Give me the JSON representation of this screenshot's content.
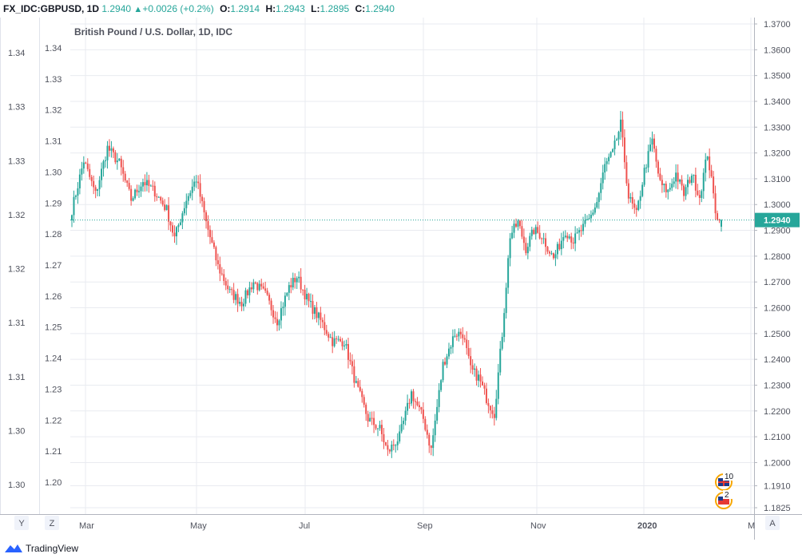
{
  "header": {
    "symbol": "FX_IDC:GBPUSD, 1D",
    "last": "1.2940",
    "change": "+0.0026 (+0.2%)",
    "open_label": "O:",
    "open": "1.2914",
    "high_label": "H:",
    "high": "1.2943",
    "low_label": "L:",
    "low": "1.2895",
    "close_label": "C:",
    "close": "1.2940"
  },
  "footer": {
    "brand": "TradingView"
  },
  "colors": {
    "up": "#26a69a",
    "down": "#ef5350",
    "grid": "#e9ebf0",
    "price_line": "#26a69a",
    "price_label_bg": "#26a69a",
    "text": "#131722",
    "axis_text": "#50535e"
  },
  "chart_data": {
    "type": "candlestick",
    "title": "British Pound / U.S. Dollar, 1D, IDC",
    "x_ticks": [
      "Mar",
      "May",
      "Jul",
      "Sep",
      "Nov",
      "2020",
      "M"
    ],
    "right_axis": {
      "ticks": [
        "1.3700",
        "1.3600",
        "1.3500",
        "1.3400",
        "1.3300",
        "1.3200",
        "1.3100",
        "1.3000",
        "1.2900",
        "1.2800",
        "1.2700",
        "1.2600",
        "1.2500",
        "1.2400",
        "1.2300",
        "1.2200",
        "1.2100",
        "1.2000",
        "1.1910",
        "1.1825"
      ],
      "range": [
        1.1825,
        1.37
      ]
    },
    "inner_axis": {
      "ticks": [
        "1.34",
        "1.33",
        "1.32",
        "1.31",
        "1.30",
        "1.29",
        "1.28",
        "1.27",
        "1.26",
        "1.25",
        "1.24",
        "1.23",
        "1.22",
        "1.21",
        "1.20"
      ]
    },
    "outer_axis": {
      "ticks": [
        "1.34",
        "1.33",
        "1.33",
        "1.32",
        "1.32",
        "1.31",
        "1.31",
        "1.30",
        "1.30"
      ]
    },
    "last_price": 1.294,
    "last_price_label": "1.2940",
    "scale_buttons": [
      "Y",
      "Z",
      "A"
    ],
    "badges": [
      {
        "flag": "gb",
        "text": "10"
      },
      {
        "flag": "us",
        "text": "2"
      }
    ],
    "anchors": [
      [
        0,
        1.298
      ],
      [
        6,
        1.317
      ],
      [
        12,
        1.304
      ],
      [
        18,
        1.322
      ],
      [
        24,
        1.316
      ],
      [
        30,
        1.302
      ],
      [
        36,
        1.309
      ],
      [
        42,
        1.305
      ],
      [
        48,
        1.298
      ],
      [
        52,
        1.287
      ],
      [
        58,
        1.302
      ],
      [
        63,
        1.31
      ],
      [
        68,
        1.293
      ],
      [
        74,
        1.276
      ],
      [
        80,
        1.266
      ],
      [
        86,
        1.262
      ],
      [
        92,
        1.27
      ],
      [
        98,
        1.265
      ],
      [
        104,
        1.255
      ],
      [
        110,
        1.268
      ],
      [
        114,
        1.272
      ],
      [
        120,
        1.262
      ],
      [
        126,
        1.255
      ],
      [
        132,
        1.247
      ],
      [
        138,
        1.247
      ],
      [
        144,
        1.23
      ],
      [
        150,
        1.217
      ],
      [
        156,
        1.213
      ],
      [
        160,
        1.204
      ],
      [
        166,
        1.21
      ],
      [
        172,
        1.227
      ],
      [
        178,
        1.217
      ],
      [
        182,
        1.205
      ],
      [
        188,
        1.238
      ],
      [
        194,
        1.25
      ],
      [
        198,
        1.25
      ],
      [
        202,
        1.236
      ],
      [
        206,
        1.233
      ],
      [
        210,
        1.225
      ],
      [
        214,
        1.219
      ],
      [
        218,
        1.25
      ],
      [
        222,
        1.288
      ],
      [
        226,
        1.293
      ],
      [
        230,
        1.283
      ],
      [
        234,
        1.29
      ],
      [
        238,
        1.288
      ],
      [
        244,
        1.279
      ],
      [
        250,
        1.29
      ],
      [
        254,
        1.286
      ],
      [
        258,
        1.29
      ],
      [
        262,
        1.294
      ],
      [
        266,
        1.301
      ],
      [
        270,
        1.315
      ],
      [
        274,
        1.32
      ],
      [
        278,
        1.331
      ],
      [
        282,
        1.303
      ],
      [
        286,
        1.296
      ],
      [
        290,
        1.313
      ],
      [
        294,
        1.325
      ],
      [
        298,
        1.308
      ],
      [
        302,
        1.305
      ],
      [
        306,
        1.312
      ],
      [
        310,
        1.304
      ],
      [
        314,
        1.312
      ],
      [
        318,
        1.303
      ],
      [
        322,
        1.32
      ],
      [
        326,
        1.298
      ],
      [
        329,
        1.2914
      ]
    ],
    "final_candle": {
      "open": 1.2914,
      "high": 1.2943,
      "low": 1.2895,
      "close": 1.294
    }
  }
}
